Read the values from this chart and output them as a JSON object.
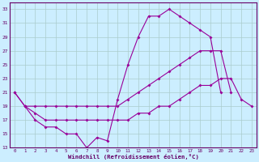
{
  "xlabel": "Windchill (Refroidissement éolien,°C)",
  "line_color": "#990099",
  "bg_color": "#cceeff",
  "grid_color": "#aacccc",
  "xlim": [
    -0.5,
    23.5
  ],
  "ylim": [
    13,
    34
  ],
  "xticks": [
    0,
    1,
    2,
    3,
    4,
    5,
    6,
    7,
    8,
    9,
    10,
    11,
    12,
    13,
    14,
    15,
    16,
    17,
    18,
    19,
    20,
    21,
    22,
    23
  ],
  "yticks": [
    13,
    15,
    17,
    19,
    21,
    23,
    25,
    27,
    29,
    31,
    33
  ],
  "s1x": [
    0,
    1,
    2,
    3,
    4,
    5,
    6,
    7,
    8,
    9,
    10,
    11,
    12,
    13,
    14,
    15,
    16,
    17,
    18,
    19,
    20
  ],
  "s1y": [
    21,
    19,
    17,
    16,
    16,
    15,
    15,
    13,
    14.5,
    14,
    20,
    25,
    29,
    32,
    32,
    33,
    32,
    31,
    30,
    29,
    21
  ],
  "s2x": [
    0,
    1,
    2,
    3,
    4,
    5,
    6,
    7,
    8,
    9,
    10,
    11,
    12,
    13,
    14,
    15,
    16,
    17,
    18,
    19,
    20,
    21
  ],
  "s2y": [
    21,
    19,
    19,
    19,
    19,
    19,
    19,
    19,
    19,
    19,
    19,
    20,
    21,
    22,
    23,
    24,
    25,
    26,
    27,
    27,
    27,
    21
  ],
  "s3x": [
    1,
    2,
    3,
    4,
    5,
    6,
    7,
    8,
    9,
    10,
    11,
    12,
    13,
    14,
    15,
    16,
    17,
    18,
    19,
    20,
    21,
    22,
    23
  ],
  "s3y": [
    19,
    18,
    17,
    17,
    17,
    17,
    17,
    17,
    17,
    17,
    17,
    18,
    18,
    19,
    19,
    20,
    21,
    22,
    22,
    23,
    23,
    20,
    19
  ]
}
